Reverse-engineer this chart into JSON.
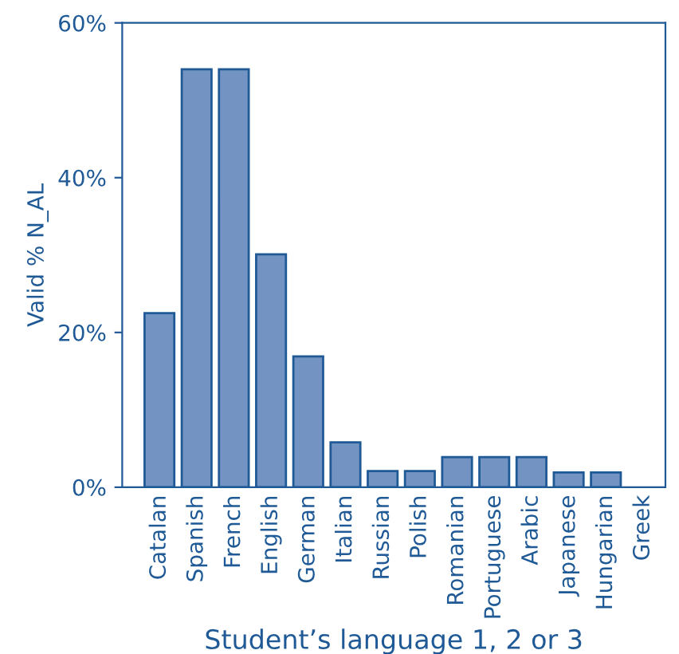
{
  "chart_data": {
    "type": "bar",
    "xlabel": "Student’s language 1, 2 or 3",
    "ylabel": "Valid % N_AL",
    "categories": [
      "Catalan",
      "Spanish",
      "French",
      "English",
      "German",
      "Italian",
      "Russian",
      "Polish",
      "Romanian",
      "Portuguese",
      "Arabic",
      "Japanese",
      "Hungarian",
      "Greek"
    ],
    "values": [
      22.5,
      54.0,
      54.0,
      30.1,
      16.9,
      5.8,
      2.1,
      2.1,
      3.9,
      3.9,
      3.9,
      1.9,
      1.9,
      0
    ],
    "color": "#7393c2",
    "ylim": [
      0,
      60
    ],
    "yticks": [
      {
        "value": 0,
        "label": "0%"
      },
      {
        "value": 20,
        "label": "20%"
      },
      {
        "value": 40,
        "label": "40%"
      },
      {
        "value": 60,
        "label": "60%"
      }
    ],
    "grid": false,
    "legend": false
  }
}
